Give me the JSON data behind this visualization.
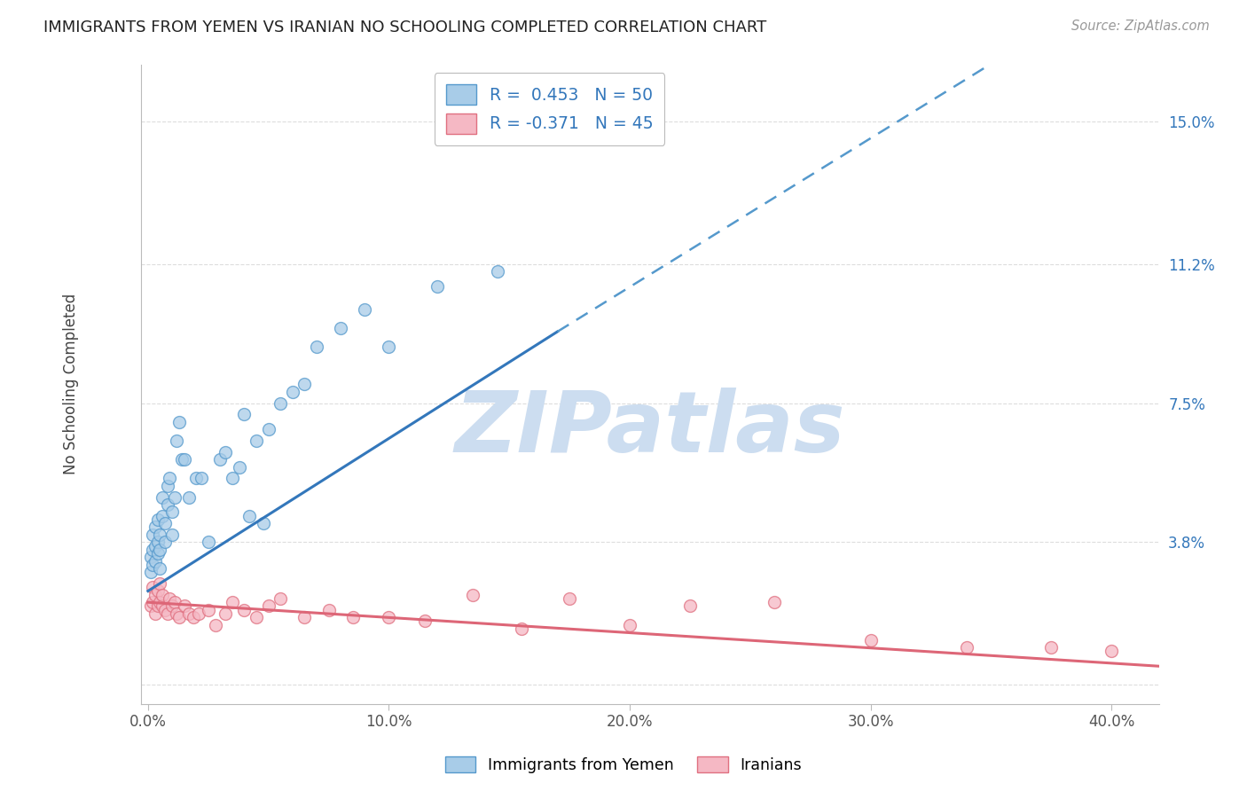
{
  "title": "IMMIGRANTS FROM YEMEN VS IRANIAN NO SCHOOLING COMPLETED CORRELATION CHART",
  "source": "Source: ZipAtlas.com",
  "ylabel": "No Schooling Completed",
  "xlabel_ticks": [
    "0.0%",
    "10.0%",
    "20.0%",
    "30.0%",
    "40.0%"
  ],
  "xlabel_vals": [
    0.0,
    0.1,
    0.2,
    0.3,
    0.4
  ],
  "ytick_vals": [
    0.0,
    0.038,
    0.075,
    0.112,
    0.15
  ],
  "ytick_labels": [
    "",
    "3.8%",
    "7.5%",
    "11.2%",
    "15.0%"
  ],
  "ylim": [
    -0.005,
    0.165
  ],
  "xlim": [
    -0.003,
    0.42
  ],
  "blue_R": 0.453,
  "blue_N": 50,
  "pink_R": -0.371,
  "pink_N": 45,
  "blue_color": "#a8cce8",
  "blue_edge_color": "#5599cc",
  "blue_line_color": "#3377bb",
  "pink_color": "#f5b8c4",
  "pink_edge_color": "#e07080",
  "pink_line_color": "#dd6677",
  "blue_scatter_x": [
    0.001,
    0.001,
    0.002,
    0.002,
    0.002,
    0.003,
    0.003,
    0.003,
    0.004,
    0.004,
    0.004,
    0.005,
    0.005,
    0.005,
    0.006,
    0.006,
    0.007,
    0.007,
    0.008,
    0.008,
    0.009,
    0.01,
    0.01,
    0.011,
    0.012,
    0.013,
    0.014,
    0.015,
    0.017,
    0.02,
    0.022,
    0.025,
    0.03,
    0.032,
    0.035,
    0.038,
    0.04,
    0.042,
    0.045,
    0.048,
    0.05,
    0.055,
    0.06,
    0.065,
    0.07,
    0.08,
    0.09,
    0.1,
    0.12,
    0.145
  ],
  "blue_scatter_y": [
    0.03,
    0.034,
    0.032,
    0.036,
    0.04,
    0.033,
    0.037,
    0.042,
    0.035,
    0.038,
    0.044,
    0.031,
    0.036,
    0.04,
    0.045,
    0.05,
    0.038,
    0.043,
    0.048,
    0.053,
    0.055,
    0.04,
    0.046,
    0.05,
    0.065,
    0.07,
    0.06,
    0.06,
    0.05,
    0.055,
    0.055,
    0.038,
    0.06,
    0.062,
    0.055,
    0.058,
    0.072,
    0.045,
    0.065,
    0.043,
    0.068,
    0.075,
    0.078,
    0.08,
    0.09,
    0.095,
    0.1,
    0.09,
    0.106,
    0.11
  ],
  "pink_scatter_x": [
    0.001,
    0.002,
    0.002,
    0.003,
    0.003,
    0.004,
    0.004,
    0.005,
    0.005,
    0.006,
    0.006,
    0.007,
    0.008,
    0.009,
    0.01,
    0.011,
    0.012,
    0.013,
    0.015,
    0.017,
    0.019,
    0.021,
    0.025,
    0.028,
    0.032,
    0.035,
    0.04,
    0.045,
    0.05,
    0.055,
    0.065,
    0.075,
    0.085,
    0.1,
    0.115,
    0.135,
    0.155,
    0.175,
    0.2,
    0.225,
    0.26,
    0.3,
    0.34,
    0.375,
    0.4
  ],
  "pink_scatter_y": [
    0.021,
    0.022,
    0.026,
    0.019,
    0.024,
    0.021,
    0.025,
    0.022,
    0.027,
    0.021,
    0.024,
    0.02,
    0.019,
    0.023,
    0.021,
    0.022,
    0.019,
    0.018,
    0.021,
    0.019,
    0.018,
    0.019,
    0.02,
    0.016,
    0.019,
    0.022,
    0.02,
    0.018,
    0.021,
    0.023,
    0.018,
    0.02,
    0.018,
    0.018,
    0.017,
    0.024,
    0.015,
    0.023,
    0.016,
    0.021,
    0.022,
    0.012,
    0.01,
    0.01,
    0.009
  ],
  "blue_line_x_start": 0.0,
  "blue_line_x_solid_end": 0.17,
  "blue_line_x_dash_end": 0.4,
  "blue_line_y_start": 0.025,
  "blue_line_y_at_solid_end": 0.094,
  "blue_line_y_at_dash_end": 0.185,
  "pink_line_x_start": 0.0,
  "pink_line_x_end": 0.42,
  "pink_line_y_start": 0.022,
  "pink_line_y_end": 0.005,
  "watermark": "ZIPatlas",
  "watermark_color": "#ccddf0",
  "legend_label_blue": "Immigrants from Yemen",
  "legend_label_pink": "Iranians",
  "background_color": "#ffffff",
  "grid_color": "#dddddd"
}
